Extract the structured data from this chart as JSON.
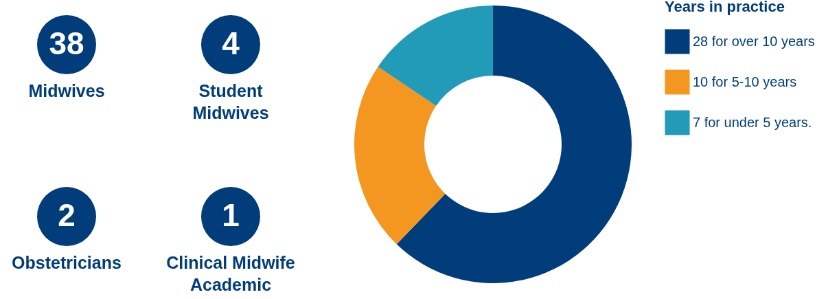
{
  "chart_data": [
    {
      "type": "other",
      "categories": [
        "Midwives",
        "Student\nMidwives",
        "Obstetricians",
        "Clinical Midwife\nAcademic"
      ],
      "values": [
        38,
        4,
        2,
        1
      ],
      "data_labels": true,
      "color": "#003d7a"
    },
    {
      "type": "donut",
      "legend_title": "Years in practice",
      "legend": "right",
      "categories": [
        "28 for over 10 years",
        "10 for 5-10 years",
        "7 for under 5 years."
      ],
      "values": [
        28,
        10,
        7
      ],
      "colors": [
        "#003d7a",
        "#f39721",
        "#219bb8"
      ]
    }
  ]
}
